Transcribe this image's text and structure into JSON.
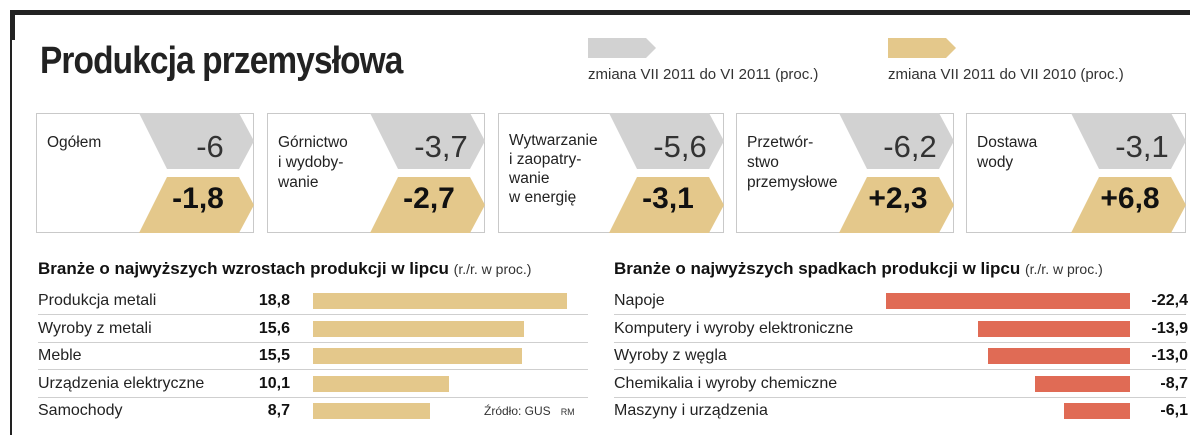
{
  "title": "Produkcja przemysłowa",
  "colors": {
    "grey": "#d2d2d2",
    "gold": "#e4c88b",
    "red": "#e06b55"
  },
  "legend": {
    "mom_label": "zmiana VII 2011 do VI 2011 (proc.)",
    "yoy_label": "zmiana VII 2011 do VII 2010 (proc.)"
  },
  "chart_data": [
    {
      "type": "table",
      "columns": [
        "zmiana VII 2011 do VI 2011 (proc.)",
        "zmiana VII 2011 do VII 2010 (proc.)"
      ],
      "rows": [
        {
          "label": "Ogółem",
          "mom": "-6",
          "yoy": "-1,8"
        },
        {
          "label": "Górnictwo\ni wydoby-\nwanie",
          "mom": "-3,7",
          "yoy": "-2,7"
        },
        {
          "label": "Wytwarzanie\ni zaopatry-\nwanie\nw energię",
          "mom": "-5,6",
          "yoy": "-3,1"
        },
        {
          "label": "Przetwór-\nstwo\nprzemysłowe",
          "mom": "-6,2",
          "yoy": "+2,3"
        },
        {
          "label": "Dostawa\nwody",
          "mom": "-3,1",
          "yoy": "+6,8"
        }
      ]
    },
    {
      "type": "bar",
      "title": "Branże o najwyższych wzrostach produkcji w lipcu",
      "unit": "(r./r. w proc.)",
      "categories": [
        "Produkcja metali",
        "Wyroby z metali",
        "Meble",
        "Urządzenia elektryczne",
        "Samochody"
      ],
      "values": [
        18.8,
        15.6,
        15.5,
        10.1,
        8.7
      ],
      "value_labels": [
        "18,8",
        "15,6",
        "15,5",
        "10,1",
        "8,7"
      ]
    },
    {
      "type": "bar",
      "title": "Branże o najwyższych spadkach produkcji w lipcu",
      "unit": "(r./r. w proc.)",
      "categories": [
        "Napoje",
        "Komputery i wyroby elektroniczne",
        "Wyroby z węgla",
        "Chemikalia i wyroby chemiczne",
        "Maszyny i urządzenia"
      ],
      "values": [
        -22.4,
        -13.9,
        -13.0,
        -8.7,
        -6.1
      ],
      "value_labels": [
        "-22,4",
        "-13,9",
        "-13,0",
        "-8,7",
        "-6,1"
      ]
    }
  ],
  "source": "Źródło: GUS",
  "credit": "RM"
}
